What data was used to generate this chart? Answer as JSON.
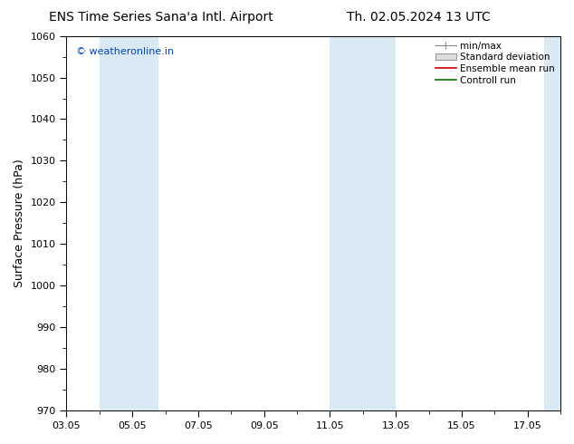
{
  "title_left": "ENS Time Series Sana'a Intl. Airport",
  "title_right": "Th. 02.05.2024 13 UTC",
  "ylabel": "Surface Pressure (hPa)",
  "ylim": [
    970,
    1060
  ],
  "yticks": [
    970,
    980,
    990,
    1000,
    1010,
    1020,
    1030,
    1040,
    1050,
    1060
  ],
  "xlim": [
    0,
    15
  ],
  "xtick_positions": [
    0,
    2,
    4,
    6,
    8,
    10,
    12,
    14
  ],
  "xtick_labels": [
    "03.05",
    "05.05",
    "07.05",
    "09.05",
    "11.05",
    "13.05",
    "15.05",
    "17.05"
  ],
  "bg_color": "#ffffff",
  "plot_bg_color": "#ffffff",
  "shaded_bands": [
    {
      "xmin": 1.0,
      "xmax": 2.8,
      "color": "#daeaf5"
    },
    {
      "xmin": 8.0,
      "xmax": 10.0,
      "color": "#daeaf5"
    },
    {
      "xmin": 14.5,
      "xmax": 15.0,
      "color": "#daeaf5"
    }
  ],
  "watermark": "© weatheronline.in",
  "watermark_color": "#0044cc",
  "title_fontsize": 10,
  "tick_fontsize": 8,
  "ylabel_fontsize": 9,
  "legend_fontsize": 7.5
}
